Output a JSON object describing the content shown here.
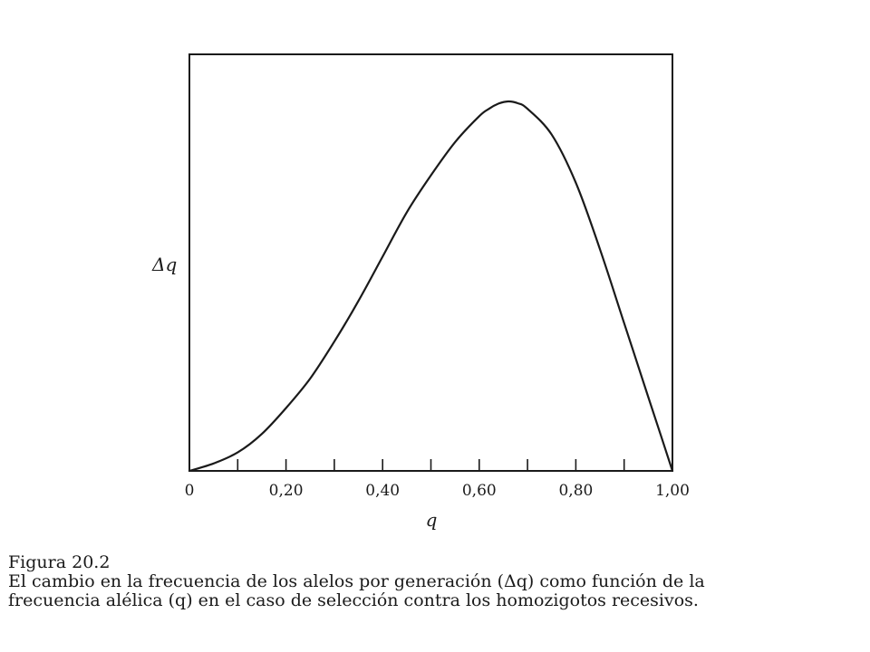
{
  "chart_data": {
    "type": "line",
    "title": "",
    "xlabel": "q",
    "ylabel": "Δq",
    "xlim": [
      0,
      1
    ],
    "ylim": [
      0,
      1
    ],
    "x_tick_labels": [
      {
        "value": 0,
        "label": "0"
      },
      {
        "value": 0.2,
        "label": "0,20"
      },
      {
        "value": 0.4,
        "label": "0,40"
      },
      {
        "value": 0.6,
        "label": "0,60"
      },
      {
        "value": 0.8,
        "label": "0,80"
      },
      {
        "value": 1.0,
        "label": "1,00"
      }
    ],
    "x_minor_ticks": [
      0.1,
      0.2,
      0.3,
      0.4,
      0.5,
      0.6,
      0.7,
      0.8,
      0.9
    ],
    "grid": false,
    "legend": "none",
    "series": [
      {
        "x": [
          0,
          0.05,
          0.1,
          0.15,
          0.2,
          0.25,
          0.3,
          0.35,
          0.4,
          0.45,
          0.5,
          0.55,
          0.6,
          0.62,
          0.64,
          0.66,
          0.68,
          0.7,
          0.75,
          0.8,
          0.85,
          0.9,
          0.95,
          0.975,
          1.0
        ],
        "y": [
          0,
          0.02,
          0.05,
          0.1,
          0.17,
          0.25,
          0.35,
          0.46,
          0.58,
          0.7,
          0.8,
          0.89,
          0.96,
          0.98,
          0.994,
          1.0,
          0.995,
          0.98,
          0.91,
          0.78,
          0.6,
          0.4,
          0.2,
          0.1,
          0
        ]
      }
    ]
  },
  "caption": {
    "figure_number": "Figura 20.2",
    "line1": "El cambio en la frecuencia de los alelos por generación (Δq) como función de la",
    "line2": "frecuencia alélica (q) en el caso de selección contra los homozigotos recesivos."
  }
}
